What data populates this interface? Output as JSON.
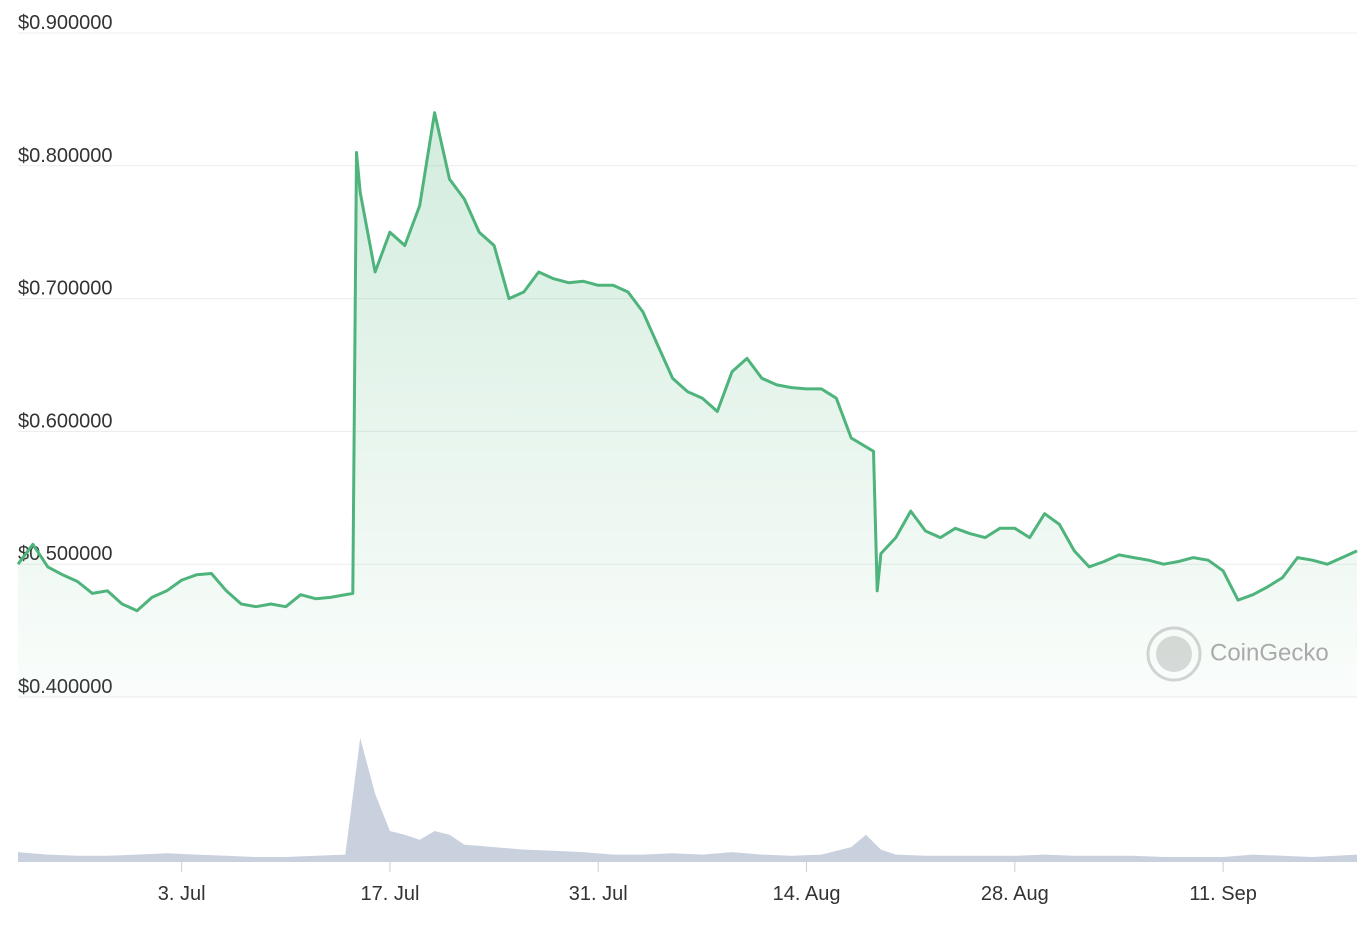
{
  "chart_data": [
    {
      "type": "line",
      "color": "#4eb47b",
      "x": [
        "06-22",
        "06-23",
        "06-24",
        "06-25",
        "06-26",
        "06-27",
        "06-28",
        "06-29",
        "06-30",
        "07-01",
        "07-02",
        "07-03",
        "07-04",
        "07-05",
        "07-06",
        "07-07",
        "07-08",
        "07-09",
        "07-10",
        "07-11",
        "07-12",
        "07-13",
        "07-14 12:00",
        "07-14 18:00",
        "07-15",
        "07-16",
        "07-17",
        "07-18",
        "07-19",
        "07-20",
        "07-21",
        "07-22",
        "07-23",
        "07-24",
        "07-25",
        "07-26",
        "07-27",
        "07-28",
        "07-29",
        "07-30",
        "07-31",
        "08-01",
        "08-02",
        "08-03",
        "08-04",
        "08-05",
        "08-06",
        "08-07",
        "08-08",
        "08-09",
        "08-10",
        "08-11",
        "08-12",
        "08-13",
        "08-14",
        "08-15",
        "08-16",
        "08-17",
        "08-18 12:00",
        "08-18 18:00",
        "08-19",
        "08-20",
        "08-21",
        "08-22",
        "08-23",
        "08-24",
        "08-25",
        "08-26",
        "08-27",
        "08-28",
        "08-29",
        "08-30",
        "08-31",
        "09-01",
        "09-02",
        "09-03",
        "09-04",
        "09-05",
        "09-06",
        "09-07",
        "09-08",
        "09-09",
        "09-10",
        "09-11",
        "09-12",
        "09-13",
        "09-14",
        "09-15",
        "09-16",
        "09-17",
        "09-18",
        "09-19",
        "09-20"
      ],
      "values": [
        0.5,
        0.515,
        0.498,
        0.492,
        0.487,
        0.478,
        0.48,
        0.47,
        0.465,
        0.475,
        0.48,
        0.488,
        0.492,
        0.493,
        0.48,
        0.47,
        0.468,
        0.47,
        0.468,
        0.477,
        0.474,
        0.475,
        0.478,
        0.81,
        0.78,
        0.72,
        0.75,
        0.74,
        0.77,
        0.84,
        0.79,
        0.775,
        0.75,
        0.74,
        0.7,
        0.705,
        0.72,
        0.715,
        0.712,
        0.713,
        0.71,
        0.71,
        0.705,
        0.69,
        0.665,
        0.64,
        0.63,
        0.625,
        0.615,
        0.645,
        0.655,
        0.64,
        0.635,
        0.633,
        0.632,
        0.632,
        0.625,
        0.595,
        0.585,
        0.48,
        0.508,
        0.52,
        0.54,
        0.525,
        0.52,
        0.527,
        0.523,
        0.52,
        0.527,
        0.527,
        0.52,
        0.538,
        0.53,
        0.51,
        0.498,
        0.502,
        0.507,
        0.505,
        0.503,
        0.5,
        0.502,
        0.505,
        0.503,
        0.495,
        0.473,
        0.477,
        0.483,
        0.49,
        0.505,
        0.503,
        0.5,
        0.505,
        0.51
      ],
      "xlim": [
        "06-22",
        "09-20"
      ],
      "xticks": [
        {
          "value": "07-03",
          "label": "3. Jul"
        },
        {
          "value": "07-17",
          "label": "17. Jul"
        },
        {
          "value": "07-31",
          "label": "31. Jul"
        },
        {
          "value": "08-14",
          "label": "14. Aug"
        },
        {
          "value": "08-28",
          "label": "28. Aug"
        },
        {
          "value": "09-11",
          "label": "11. Sep"
        }
      ],
      "ylim": [
        0.4,
        0.9
      ],
      "yticks": [
        {
          "value": 0.4,
          "label": "$0.400000"
        },
        {
          "value": 0.5,
          "label": "$0.500000"
        },
        {
          "value": 0.6,
          "label": "$0.600000"
        },
        {
          "value": 0.7,
          "label": "$0.700000"
        },
        {
          "value": 0.8,
          "label": "$0.800000"
        },
        {
          "value": 0.9,
          "label": "$0.900000"
        }
      ],
      "grid": true,
      "watermark": "CoinGecko"
    },
    {
      "type": "area",
      "color": "#c9d1df",
      "x": [
        "06-22",
        "06-24",
        "06-26",
        "06-28",
        "06-30",
        "07-02",
        "07-04",
        "07-06",
        "07-08",
        "07-10",
        "07-12",
        "07-14",
        "07-15",
        "07-16",
        "07-17",
        "07-18",
        "07-19",
        "07-20",
        "07-21",
        "07-22",
        "07-24",
        "07-26",
        "07-28",
        "07-30",
        "08-01",
        "08-03",
        "08-05",
        "08-07",
        "08-09",
        "08-11",
        "08-13",
        "08-15",
        "08-17",
        "08-18",
        "08-19",
        "08-20",
        "08-22",
        "08-24",
        "08-26",
        "08-28",
        "08-30",
        "09-01",
        "09-03",
        "09-05",
        "09-07",
        "09-09",
        "09-11",
        "09-13",
        "09-15",
        "09-17",
        "09-20"
      ],
      "values": [
        8,
        6,
        5,
        5,
        6,
        7,
        6,
        5,
        4,
        4,
        5,
        6,
        100,
        55,
        25,
        22,
        18,
        25,
        22,
        14,
        12,
        10,
        9,
        8,
        6,
        6,
        7,
        6,
        8,
        6,
        5,
        6,
        12,
        22,
        10,
        6,
        5,
        5,
        5,
        5,
        6,
        5,
        5,
        5,
        4,
        4,
        4,
        6,
        5,
        4,
        6
      ],
      "xlim": [
        "06-22",
        "09-20"
      ]
    }
  ]
}
